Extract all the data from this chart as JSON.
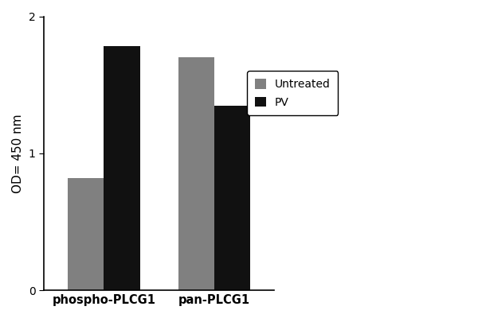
{
  "categories": [
    "phospho-PLCG1",
    "pan-PLCG1"
  ],
  "untreated_values": [
    0.82,
    1.7
  ],
  "pv_values": [
    1.78,
    1.35
  ],
  "untreated_color": "#808080",
  "pv_color": "#111111",
  "ylabel": "OD= 450 nm",
  "ylim": [
    0,
    2
  ],
  "yticks": [
    0,
    1,
    2
  ],
  "legend_labels": [
    "Untreated",
    "PV"
  ],
  "bar_width": 0.18,
  "group_centers": [
    0.3,
    0.85
  ],
  "figsize": [
    6.0,
    4.0
  ],
  "dpi": 100,
  "legend_fontsize": 10,
  "ylabel_fontsize": 11,
  "tick_fontsize": 10,
  "xlabel_fontsize": 10.5
}
